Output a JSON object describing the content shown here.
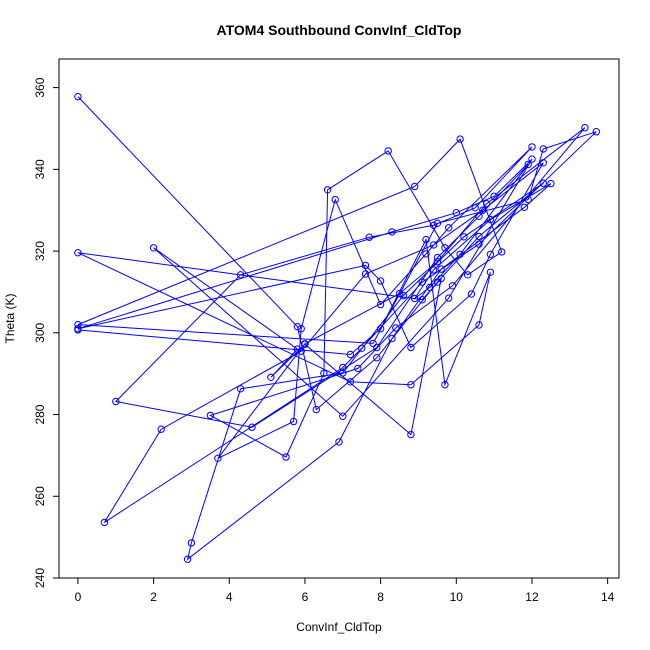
{
  "chart_data": {
    "type": "line",
    "title": "ATOM4 Southbound ConvInf_CldTop",
    "xlabel": "ConvInf_CldTop",
    "ylabel": "Theta (K)",
    "xlim": [
      -0.5,
      14.3
    ],
    "ylim": [
      240,
      367
    ],
    "x_ticks": [
      0,
      2,
      4,
      6,
      8,
      10,
      12,
      14
    ],
    "y_ticks": [
      240,
      260,
      280,
      300,
      320,
      340,
      360
    ],
    "grid": false,
    "legend": "none",
    "markers": "open-circle",
    "series": [
      {
        "color": "#0000ff",
        "x": [
          0.0,
          5.8,
          6.3,
          7.9,
          9.5,
          10.6,
          12.3,
          10.2,
          8.6,
          7.0,
          4.3,
          3.0,
          2.9,
          6.9,
          8.3,
          9.6,
          11.8,
          12.5,
          10.9,
          9.4,
          8.9,
          9.3,
          10.1,
          11.9,
          10.6,
          9.5,
          7.9,
          4.6,
          1.0,
          4.3,
          7.7,
          9.4,
          10.5,
          12.0,
          9.8,
          9.2,
          8.0,
          6.8,
          5.9,
          5.7,
          3.7,
          6.0,
          8.5,
          9.5,
          10.8,
          13.4,
          9.9,
          8.4,
          7.4,
          3.5,
          5.5,
          6.5,
          6.6,
          8.2,
          9.7,
          10.3,
          11.2,
          10.1,
          8.9,
          0.0,
          7.8,
          9.5,
          11.9,
          12.3,
          13.7,
          10.6,
          9.1,
          7.5,
          7.0,
          0.7,
          2.2,
          5.9,
          7.6,
          9.4,
          10.7,
          12.3,
          10.9,
          10.4,
          8.8,
          8.0,
          7.6,
          0.0,
          8.3,
          10.0,
          11.0,
          12.0,
          9.8,
          7.0,
          2.0,
          5.8,
          5.1,
          6.0,
          8.8,
          9.6,
          9.1,
          0.0,
          7.2,
          8.8,
          10.6,
          10.9,
          9.7,
          9.2,
          8.0,
          7.2,
          0.0
        ],
        "y": [
          357.8,
          301.5,
          281.2,
          293.9,
          312.4,
          323.6,
          336.6,
          323.5,
          309.1,
          290.2,
          286.3,
          248.6,
          244.6,
          273.3,
          298.6,
          315.6,
          330.7,
          336.5,
          327.7,
          315.4,
          308.4,
          311.1,
          319.2,
          341.2,
          328.5,
          318.4,
          296.4,
          276.9,
          283.2,
          314.2,
          323.4,
          326.3,
          330.6,
          345.5,
          325.7,
          319.3,
          306.9,
          332.6,
          301.0,
          278.3,
          269.3,
          297.3,
          309.6,
          317.4,
          331.6,
          350.2,
          311.5,
          301.2,
          291.3,
          279.8,
          269.6,
          290.1,
          335.0,
          344.5,
          320.8,
          314.2,
          319.8,
          347.4,
          335.8,
          302.0,
          297.4,
          326.8,
          332.6,
          345.0,
          349.2,
          321.7,
          312.4,
          296.2,
          291.5,
          253.6,
          276.4,
          295.5,
          314.4,
          321.5,
          330.0,
          341.6,
          319.2,
          309.5,
          296.4,
          312.7,
          316.5,
          301.0,
          324.7,
          329.4,
          333.4,
          342.5,
          308.5,
          279.6,
          320.8,
          296.0,
          289.1,
          297.2,
          275.1,
          313.3,
          308.1,
          319.6,
          288.0,
          287.3,
          301.9,
          314.8,
          287.3,
          322.8,
          301.0,
          294.7,
          300.7
        ]
      }
    ]
  }
}
